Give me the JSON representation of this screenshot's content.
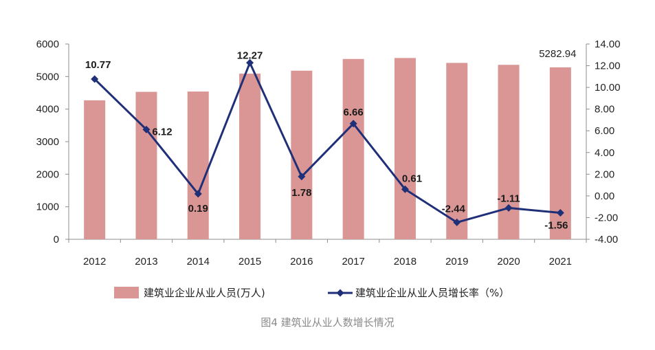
{
  "chart_data": {
    "type": "bar+line",
    "title": "",
    "categories": [
      "2012",
      "2013",
      "2014",
      "2015",
      "2016",
      "2017",
      "2018",
      "2019",
      "2020",
      "2021"
    ],
    "series": [
      {
        "name": "建筑业企业从业人员(万人)",
        "type": "bar",
        "axis": "left",
        "color": "#d99694",
        "values": [
          4270,
          4530,
          4540,
          5090,
          5180,
          5540,
          5570,
          5420,
          5360,
          5282.94
        ],
        "data_labels": [
          "",
          "",
          "",
          "",
          "",
          "",
          "",
          "",
          "",
          "5282.94"
        ]
      },
      {
        "name": "建筑业企业从业人员增长率（%）",
        "type": "line",
        "axis": "right",
        "color": "#1f2f78",
        "marker": "diamond",
        "values": [
          10.77,
          6.12,
          0.19,
          12.27,
          1.78,
          6.66,
          0.61,
          -2.44,
          -1.11,
          -1.56
        ],
        "data_labels": [
          "10.77",
          "6.12",
          "0.19",
          "12.27",
          "1.78",
          "6.66",
          "0.61",
          "-2.44",
          "-1.11",
          "-1.56"
        ]
      }
    ],
    "y_left": {
      "label": "",
      "ylim": [
        0,
        6000
      ],
      "ticks": [
        "6000",
        "5000",
        "4000",
        "3000",
        "2000",
        "1000",
        "0"
      ]
    },
    "y_right": {
      "label": "",
      "ylim": [
        -4,
        14
      ],
      "ticks": [
        "14.00",
        "12.00",
        "10.00",
        "8.00",
        "6.00",
        "4.00",
        "2.00",
        "0.00",
        "-2.00",
        "-4.00"
      ]
    },
    "grid": false,
    "legend_position": "bottom"
  },
  "caption": "图4 建筑业从业人数增长情况"
}
